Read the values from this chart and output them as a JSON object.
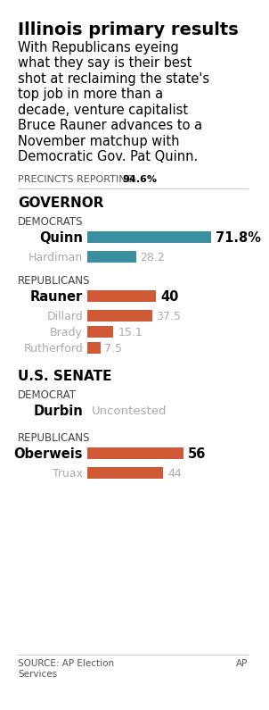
{
  "title": "Illinois primary results",
  "subtitle_lines": [
    "With Republicans eyeing",
    "what they say is their best",
    "shot at reclaiming the state's",
    "top job in more than a",
    "decade, venture capitalist",
    "Bruce Rauner advances to a",
    "November matchup with",
    "Democratic Gov. Pat Quinn."
  ],
  "precincts_label": "PRECINCTS REPORTING: ",
  "precincts_value": "94.6%",
  "bg_color": "#ffffff",
  "dem_color": "#3a8fa0",
  "rep_color": "#d05a36",
  "gray_color": "#aaaaaa",
  "dark_gray": "#555555",
  "sections": [
    {
      "section_title": "GOVERNOR",
      "parties": [
        {
          "party": "DEMOCRATS",
          "candidates": [
            {
              "name": "Quinn",
              "value": 71.8,
              "label": "71.8%",
              "winner": true
            },
            {
              "name": "Hardiman",
              "value": 28.2,
              "label": "28.2",
              "winner": false
            }
          ],
          "bar_color": "#3a8fa0",
          "max_val": 75
        },
        {
          "party": "REPUBLICANS",
          "candidates": [
            {
              "name": "Rauner",
              "value": 40,
              "label": "40",
              "winner": true
            },
            {
              "name": "Dillard",
              "value": 37.5,
              "label": "37.5",
              "winner": false
            },
            {
              "name": "Brady",
              "value": 15.1,
              "label": "15.1",
              "winner": false
            },
            {
              "name": "Rutherford",
              "value": 7.5,
              "label": "7.5",
              "winner": false
            }
          ],
          "bar_color": "#d05a36",
          "max_val": 75
        }
      ]
    },
    {
      "section_title": "U.S. SENATE",
      "parties": [
        {
          "party": "DEMOCRAT",
          "candidates": [
            {
              "name": "Durbin",
              "value": 0,
              "label": "Uncontested",
              "winner": true
            }
          ],
          "bar_color": "#3a8fa0",
          "max_val": 75
        },
        {
          "party": "REPUBLICANS",
          "candidates": [
            {
              "name": "Oberweis",
              "value": 56,
              "label": "56",
              "winner": true
            },
            {
              "name": "Truax",
              "value": 44,
              "label": "44",
              "winner": false
            }
          ],
          "bar_color": "#d05a36",
          "max_val": 75
        }
      ]
    }
  ],
  "source": "SOURCE: AP Election\nServices",
  "source_right": "AP"
}
